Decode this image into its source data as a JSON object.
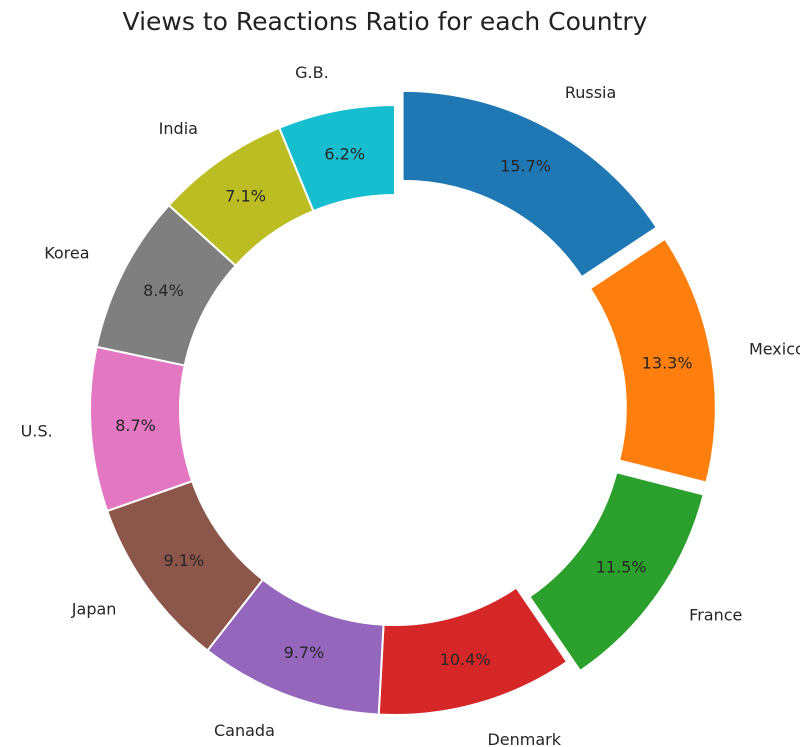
{
  "chart_data": {
    "type": "pie",
    "title": "Views to Reactions Ratio for each Country",
    "categories": [
      "Russia",
      "Mexico",
      "France",
      "Denmark",
      "Canada",
      "Japan",
      "U.S.",
      "Korea",
      "India",
      "G.B."
    ],
    "values": [
      15.7,
      13.3,
      11.5,
      10.4,
      9.7,
      9.1,
      8.7,
      8.4,
      7.1,
      6.2
    ],
    "value_labels": [
      "15.7%",
      "13.3%",
      "11.5%",
      "10.4%",
      "9.7%",
      "9.1%",
      "8.7%",
      "8.4%",
      "7.1%",
      "6.2%"
    ],
    "colors": [
      "#1f77b4",
      "#ff7f0e",
      "#2ca02c",
      "#d62728",
      "#9467bd",
      "#8c564b",
      "#e377c2",
      "#7f7f7f",
      "#bcbd22",
      "#17becf"
    ],
    "exploded": [
      true,
      true,
      true,
      false,
      false,
      false,
      false,
      false,
      false,
      false
    ],
    "donut": true,
    "start": "top",
    "direction": "clockwise"
  }
}
